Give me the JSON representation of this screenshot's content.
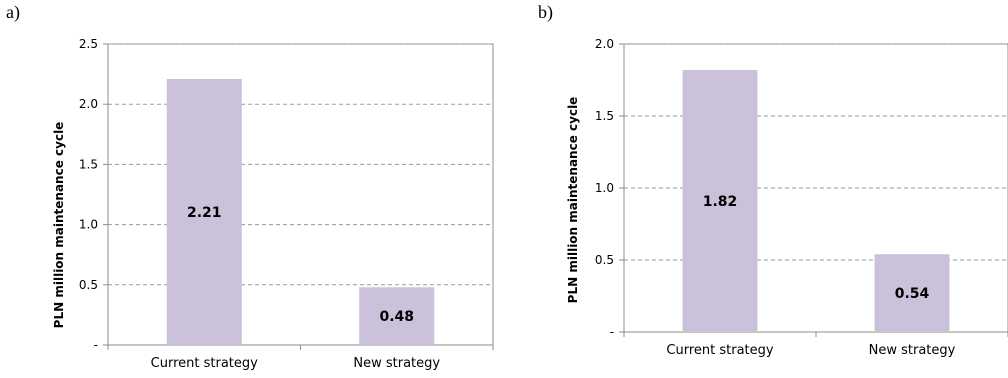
{
  "chart_data": [
    {
      "type": "bar",
      "panel_label": "a)",
      "categories": [
        "Current strategy",
        "New strategy"
      ],
      "values": [
        2.21,
        0.48
      ],
      "data_labels": [
        "2.21",
        "0.48"
      ],
      "ylabel": "PLN million maintenance cycle",
      "xlabel": "",
      "title": "",
      "ylim": [
        0,
        2.5
      ],
      "yticks": [
        0,
        0.5,
        1.0,
        1.5,
        2.0,
        2.5
      ],
      "ytick_labels": [
        "-",
        "0.5",
        "1.0",
        "1.5",
        "2.0",
        "2.5"
      ],
      "grid": true,
      "bar_color": "#ccc1da"
    },
    {
      "type": "bar",
      "panel_label": "b)",
      "categories": [
        "Current strategy",
        "New strategy"
      ],
      "values": [
        1.82,
        0.54
      ],
      "data_labels": [
        "1.82",
        "0.54"
      ],
      "ylabel": "PLN million maintenance cycle",
      "xlabel": "",
      "title": "",
      "ylim": [
        0,
        2.0
      ],
      "yticks": [
        0,
        0.5,
        1.0,
        1.5,
        2.0
      ],
      "ytick_labels": [
        "-",
        "0.5",
        "1.0",
        "1.5",
        "2.0"
      ],
      "grid": true,
      "bar_color": "#ccc1da"
    }
  ]
}
